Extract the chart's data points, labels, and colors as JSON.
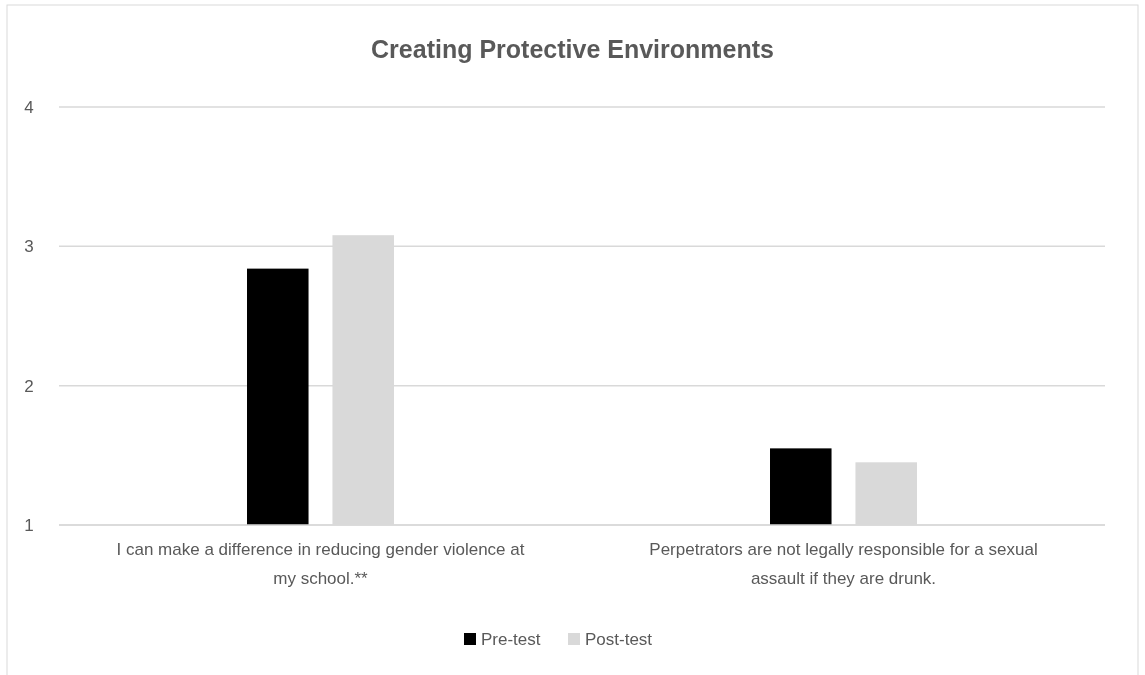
{
  "chart_data": {
    "type": "bar",
    "title": "Creating Protective Environments",
    "categories": [
      "I can make a difference in reducing gender violence at my school.**",
      "Perpetrators are not legally responsible for a sexual assault if they are drunk."
    ],
    "series": [
      {
        "name": "Pre-test",
        "color": "#000000",
        "values": [
          2.84,
          1.55
        ]
      },
      {
        "name": "Post-test",
        "color": "#d9d9d9",
        "values": [
          3.08,
          1.45
        ]
      }
    ],
    "ylim": [
      1,
      4
    ],
    "yticks": [
      1,
      2,
      3,
      4
    ],
    "grid": "y",
    "legend": "bottom"
  }
}
